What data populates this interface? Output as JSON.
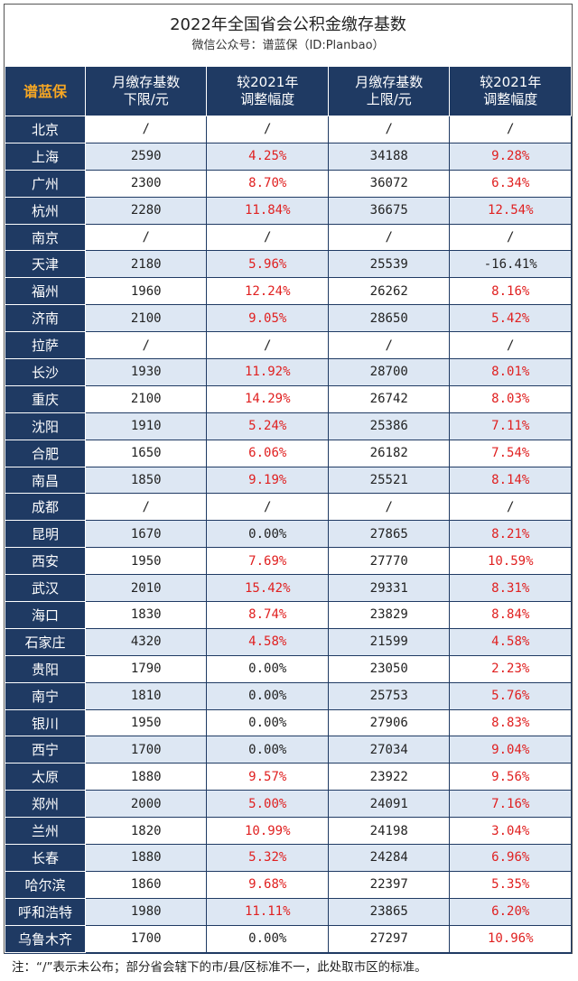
{
  "title": "2022年全国省会公积金缴存基数",
  "subtitle": "微信公众号：谱蓝保（ID:Planbao）",
  "header": {
    "brand": "谱蓝保",
    "col1": [
      "月缴存基数",
      "下限/元"
    ],
    "col2": [
      "较2021年",
      "调整幅度"
    ],
    "col3": [
      "月缴存基数",
      "上限/元"
    ],
    "col4": [
      "较2021年",
      "调整幅度"
    ]
  },
  "colors": {
    "navy": "#1f3a63",
    "stripe": "#dde7f3",
    "positive": "#e02020",
    "brand": "#f5a623"
  },
  "rows": [
    {
      "city": "北京",
      "low": "/",
      "low_chg": "/",
      "high": "/",
      "high_chg": "/"
    },
    {
      "city": "上海",
      "low": "2590",
      "low_chg": "4.25%",
      "high": "34188",
      "high_chg": "9.28%"
    },
    {
      "city": "广州",
      "low": "2300",
      "low_chg": "8.70%",
      "high": "36072",
      "high_chg": "6.34%"
    },
    {
      "city": "杭州",
      "low": "2280",
      "low_chg": "11.84%",
      "high": "36675",
      "high_chg": "12.54%"
    },
    {
      "city": "南京",
      "low": "/",
      "low_chg": "/",
      "high": "/",
      "high_chg": "/"
    },
    {
      "city": "天津",
      "low": "2180",
      "low_chg": "5.96%",
      "high": "25539",
      "high_chg": "-16.41%"
    },
    {
      "city": "福州",
      "low": "1960",
      "low_chg": "12.24%",
      "high": "26262",
      "high_chg": "8.16%"
    },
    {
      "city": "济南",
      "low": "2100",
      "low_chg": "9.05%",
      "high": "28650",
      "high_chg": "5.42%"
    },
    {
      "city": "拉萨",
      "low": "/",
      "low_chg": "/",
      "high": "/",
      "high_chg": "/"
    },
    {
      "city": "长沙",
      "low": "1930",
      "low_chg": "11.92%",
      "high": "28700",
      "high_chg": "8.01%"
    },
    {
      "city": "重庆",
      "low": "2100",
      "low_chg": "14.29%",
      "high": "26742",
      "high_chg": "8.03%"
    },
    {
      "city": "沈阳",
      "low": "1910",
      "low_chg": "5.24%",
      "high": "25386",
      "high_chg": "7.11%"
    },
    {
      "city": "合肥",
      "low": "1650",
      "low_chg": "6.06%",
      "high": "26182",
      "high_chg": "7.54%"
    },
    {
      "city": "南昌",
      "low": "1850",
      "low_chg": "9.19%",
      "high": "25521",
      "high_chg": "8.14%"
    },
    {
      "city": "成都",
      "low": "/",
      "low_chg": "/",
      "high": "/",
      "high_chg": "/"
    },
    {
      "city": "昆明",
      "low": "1670",
      "low_chg": "0.00%",
      "high": "27865",
      "high_chg": "8.21%"
    },
    {
      "city": "西安",
      "low": "1950",
      "low_chg": "7.69%",
      "high": "27770",
      "high_chg": "10.59%"
    },
    {
      "city": "武汉",
      "low": "2010",
      "low_chg": "15.42%",
      "high": "29331",
      "high_chg": "8.31%"
    },
    {
      "city": "海口",
      "low": "1830",
      "low_chg": "8.74%",
      "high": "23829",
      "high_chg": "8.84%"
    },
    {
      "city": "石家庄",
      "low": "4320",
      "low_chg": "4.58%",
      "high": "21599",
      "high_chg": "4.58%"
    },
    {
      "city": "贵阳",
      "low": "1790",
      "low_chg": "0.00%",
      "high": "23050",
      "high_chg": "2.23%"
    },
    {
      "city": "南宁",
      "low": "1810",
      "low_chg": "0.00%",
      "high": "25753",
      "high_chg": "5.76%"
    },
    {
      "city": "银川",
      "low": "1950",
      "low_chg": "0.00%",
      "high": "27906",
      "high_chg": "8.83%"
    },
    {
      "city": "西宁",
      "low": "1700",
      "low_chg": "0.00%",
      "high": "27034",
      "high_chg": "9.04%"
    },
    {
      "city": "太原",
      "low": "1880",
      "low_chg": "9.57%",
      "high": "23922",
      "high_chg": "9.56%"
    },
    {
      "city": "郑州",
      "low": "2000",
      "low_chg": "5.00%",
      "high": "24091",
      "high_chg": "7.16%"
    },
    {
      "city": "兰州",
      "low": "1820",
      "low_chg": "10.99%",
      "high": "24198",
      "high_chg": "3.04%"
    },
    {
      "city": "长春",
      "low": "1880",
      "low_chg": "5.32%",
      "high": "24284",
      "high_chg": "6.96%"
    },
    {
      "city": "哈尔滨",
      "low": "1860",
      "low_chg": "9.68%",
      "high": "22397",
      "high_chg": "5.35%"
    },
    {
      "city": "呼和浩特",
      "low": "1980",
      "low_chg": "11.11%",
      "high": "23865",
      "high_chg": "6.20%"
    },
    {
      "city": "乌鲁木齐",
      "low": "1700",
      "low_chg": "0.00%",
      "high": "27297",
      "high_chg": "10.96%"
    }
  ],
  "footnote": "注：“/”表示未公布；部分省会辖下的市/县/区标准不一，此处取市区的标准。"
}
